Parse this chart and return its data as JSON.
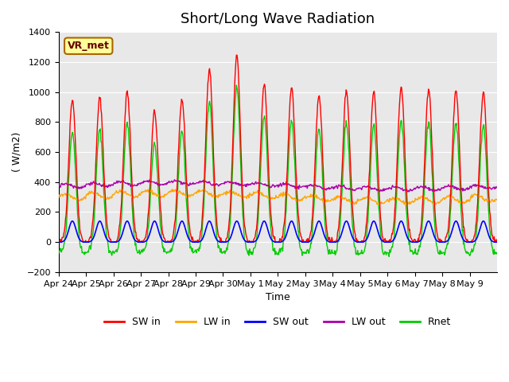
{
  "title": "Short/Long Wave Radiation",
  "xlabel": "Time",
  "ylabel": "( W/m2)",
  "ylim": [
    -200,
    1400
  ],
  "n_days": 16,
  "xtick_labels": [
    "Apr 24",
    "Apr 25",
    "Apr 26",
    "Apr 27",
    "Apr 28",
    "Apr 29",
    "Apr 30",
    "May 1",
    "May 2",
    "May 3",
    "May 4",
    "May 5",
    "May 6",
    "May 7",
    "May 8",
    "May 9"
  ],
  "legend_labels": [
    "SW in",
    "LW in",
    "SW out",
    "LW out",
    "Rnet"
  ],
  "colors": {
    "SW_in": "#ff0000",
    "LW_in": "#ffa500",
    "SW_out": "#0000ff",
    "LW_out": "#aa00aa",
    "Rnet": "#00cc00"
  },
  "day_peaks": [
    950,
    960,
    1000,
    870,
    950,
    1160,
    1240,
    1050,
    1030,
    980,
    1010,
    1000,
    1030,
    1020,
    1010,
    1000
  ],
  "annotation_text": "VR_met",
  "annotation_bg": "#ffff99",
  "annotation_border": "#aa6600",
  "background_color": "#e8e8e8",
  "grid_color": "#ffffff",
  "title_fontsize": 13,
  "axis_fontsize": 9,
  "tick_fontsize": 8
}
